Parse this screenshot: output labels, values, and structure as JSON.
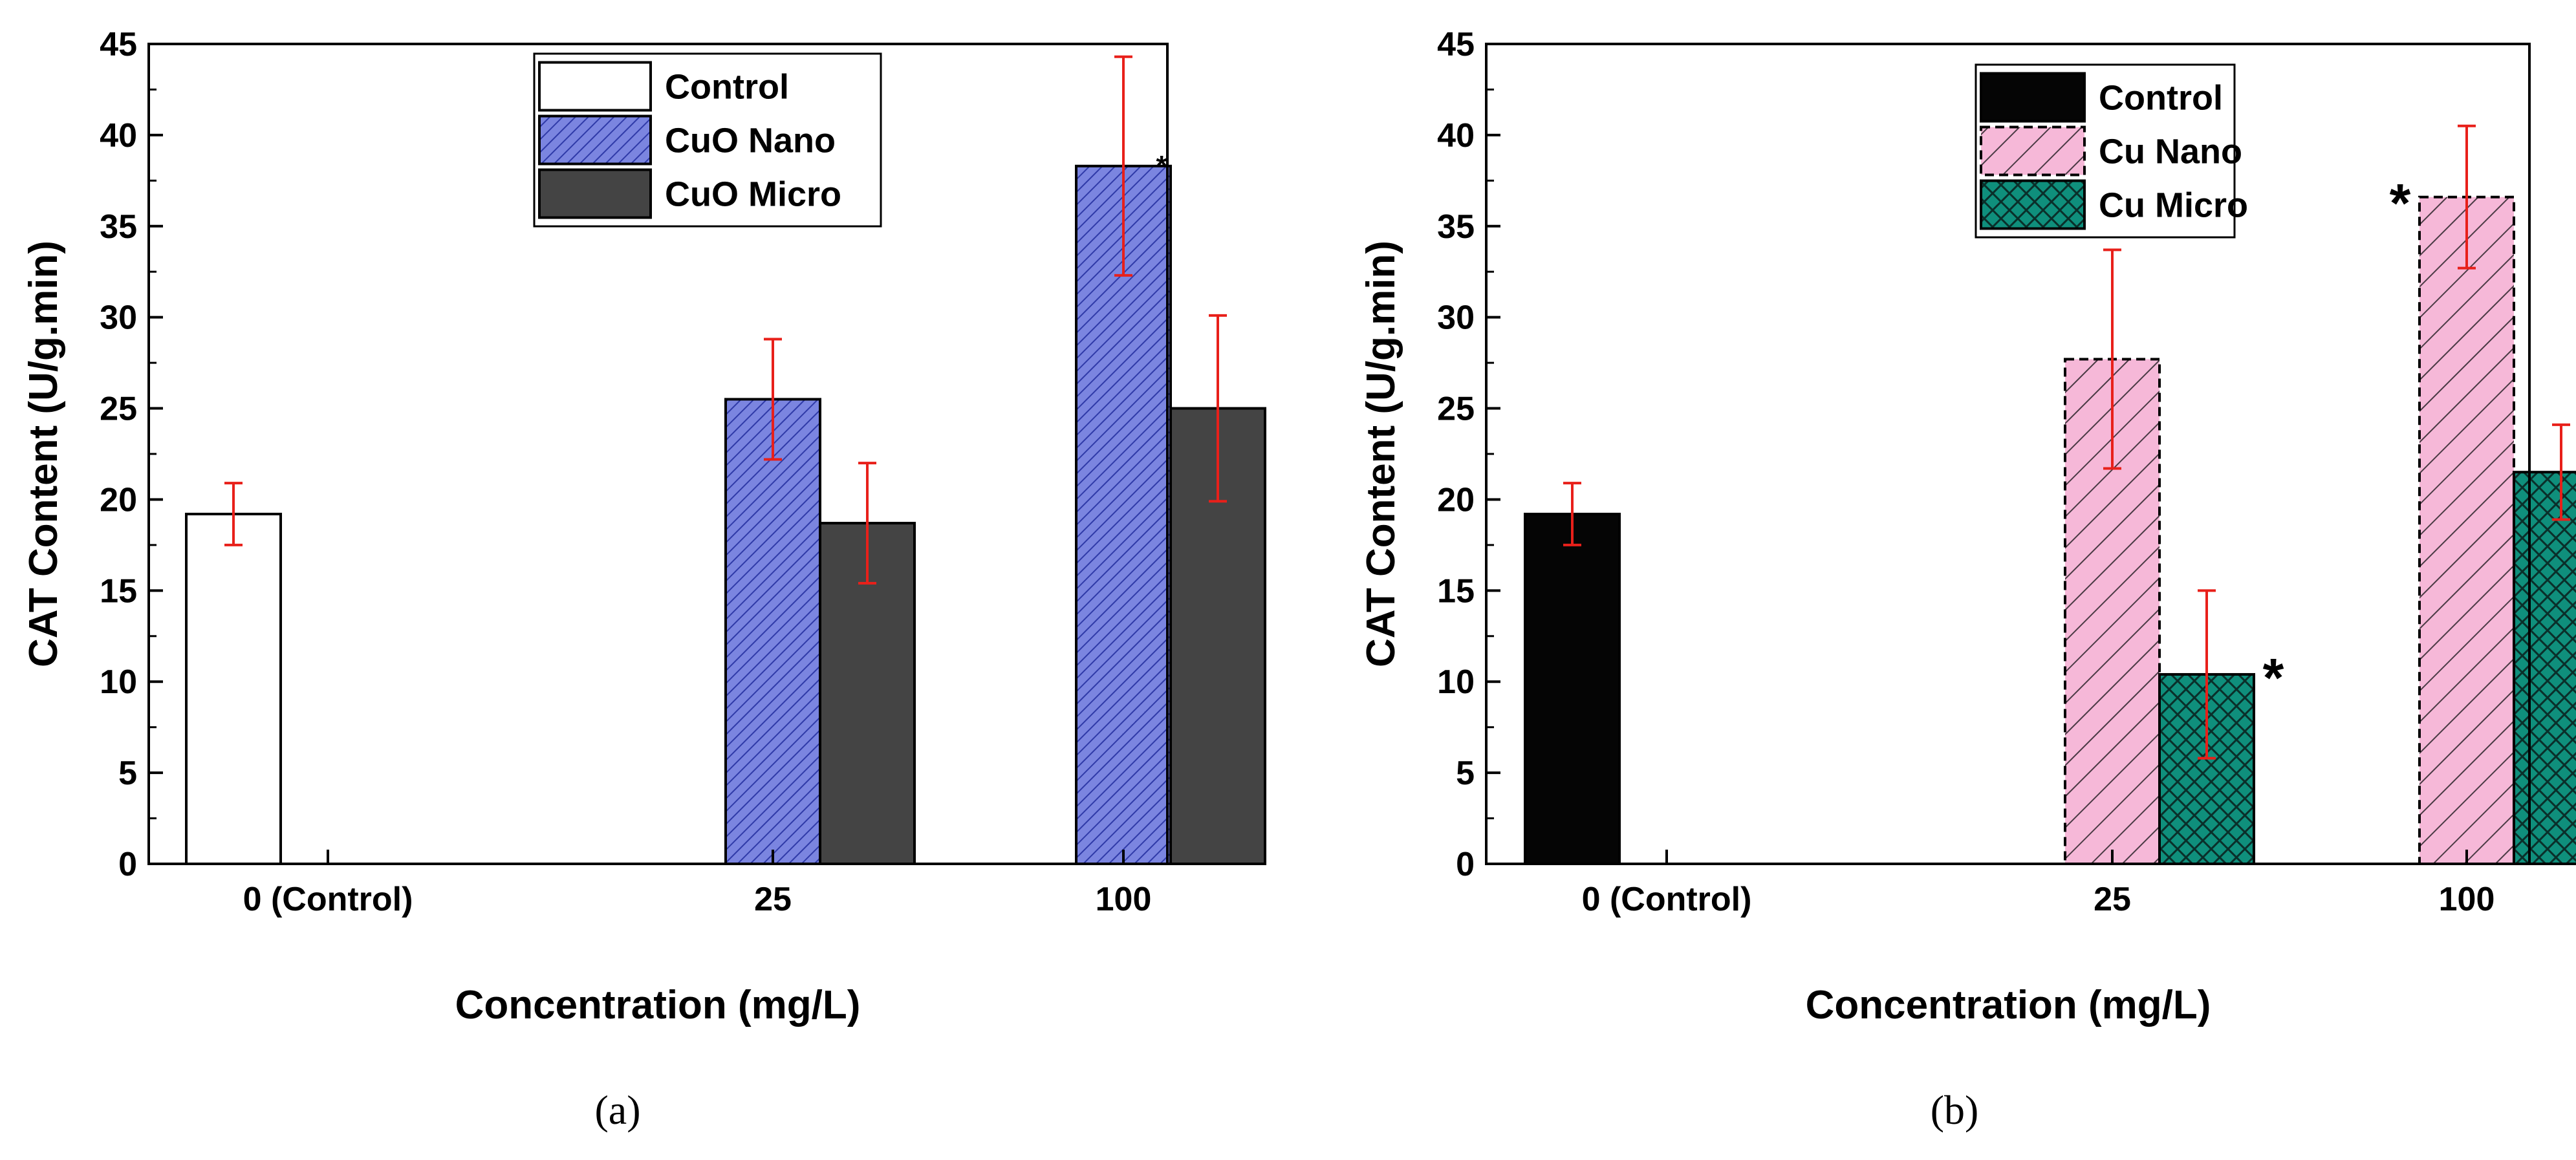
{
  "chart_data": [
    {
      "type": "bar",
      "panel_label": "(a)",
      "categories": [
        "0 (Control)",
        "25",
        "100"
      ],
      "ylabel": "CAT Content (U/g.min)",
      "xlabel": "Concentration (mg/L)",
      "ylim": [
        0,
        45
      ],
      "yticks": [
        0,
        5,
        10,
        15,
        20,
        25,
        30,
        35,
        40,
        45
      ],
      "legend_position": "top-right",
      "series": [
        {
          "name": "Control",
          "values": [
            19.2,
            null,
            null
          ],
          "errors": [
            1.7,
            null,
            null
          ],
          "color": "#ffffff",
          "pattern": "none"
        },
        {
          "name": "CuO Nano",
          "values": [
            null,
            25.5,
            38.3
          ],
          "errors": [
            null,
            3.3,
            6.0
          ],
          "color": "#7b85e0",
          "pattern": "diagonal-lines"
        },
        {
          "name": "CuO Micro",
          "values": [
            null,
            18.7,
            25.0
          ],
          "errors": [
            null,
            3.3,
            5.1
          ],
          "color": "#444444",
          "pattern": "none"
        }
      ],
      "significance": [
        {
          "series": 1,
          "category": 2,
          "text": "*"
        }
      ]
    },
    {
      "type": "bar",
      "panel_label": "(b)",
      "categories": [
        "0 (Control)",
        "25",
        "100"
      ],
      "ylabel": "CAT Content (U/g.min)",
      "xlabel": "Concentration (mg/L)",
      "ylim": [
        0,
        45
      ],
      "yticks": [
        0,
        5,
        10,
        15,
        20,
        25,
        30,
        35,
        40,
        45
      ],
      "legend_position": "top-right",
      "series": [
        {
          "name": "Control",
          "values": [
            19.2,
            null,
            null
          ],
          "errors": [
            1.7,
            null,
            null
          ],
          "color": "#050505",
          "pattern": "none"
        },
        {
          "name": "Cu Nano",
          "values": [
            null,
            27.7,
            36.6
          ],
          "errors": [
            null,
            6.0,
            3.9
          ],
          "color": "#f6b8d8",
          "pattern": "diagonal-lines"
        },
        {
          "name": "Cu Micro",
          "values": [
            null,
            10.4,
            21.5
          ],
          "errors": [
            null,
            4.6,
            2.6
          ],
          "color": "#0f8f7c",
          "pattern": "crosshatch"
        }
      ],
      "significance": [
        {
          "series": 2,
          "category": 1,
          "text": "*"
        },
        {
          "series": 1,
          "category": 2,
          "text": "*"
        }
      ]
    }
  ]
}
